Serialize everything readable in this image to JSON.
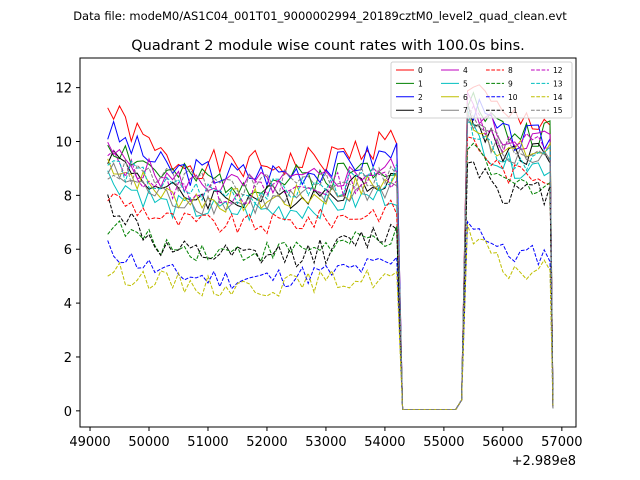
{
  "chart_data": {
    "type": "line",
    "suptitle": "Data file: modeM0/AS1C04_001T01_9000002994_20189cztM0_level2_quad_clean.evt",
    "title": "Quadrant 2 module wise count rates with 100.0s bins.",
    "xlabel": "",
    "ylabel": "",
    "x_offset_label": "+2.989e8",
    "xlim": [
      48830,
      57240
    ],
    "ylim": [
      -0.6,
      13.1
    ],
    "x_ticks": [
      49000,
      50000,
      51000,
      52000,
      53000,
      54000,
      55000,
      56000,
      57000
    ],
    "x_tick_labels": [
      "49000",
      "50000",
      "51000",
      "52000",
      "53000",
      "54000",
      "55000",
      "56000",
      "57000"
    ],
    "y_ticks": [
      0,
      2,
      4,
      6,
      8,
      10,
      12
    ],
    "y_tick_labels": [
      "0",
      "2",
      "4",
      "6",
      "8",
      "10",
      "12"
    ],
    "legend_location": "upper-right",
    "legend_columns": 4,
    "segments": {
      "seg1": [
        49300,
        54200
      ],
      "gap_low": 54300,
      "gap_high": 55200,
      "seg2": [
        55400,
        56800
      ],
      "end": 56850
    },
    "series": [
      {
        "name": "0",
        "color": "#ff0000",
        "dash": "solid",
        "level1": 9.3,
        "start": 11.2,
        "level2": 10.8,
        "amp": 0.35,
        "seed": 1
      },
      {
        "name": "1",
        "color": "#008000",
        "dash": "solid",
        "level1": 8.7,
        "start": 10.0,
        "level2": 10.3,
        "amp": 0.35,
        "seed": 2
      },
      {
        "name": "2",
        "color": "#0000ff",
        "dash": "solid",
        "level1": 9.0,
        "start": 10.4,
        "level2": 10.1,
        "amp": 0.35,
        "seed": 3
      },
      {
        "name": "3",
        "color": "#000000",
        "dash": "solid",
        "level1": 8.1,
        "start": 9.6,
        "level2": 9.6,
        "amp": 0.3,
        "seed": 4
      },
      {
        "name": "4",
        "color": "#bf00bf",
        "dash": "solid",
        "level1": 8.6,
        "start": 9.6,
        "level2": 10.1,
        "amp": 0.3,
        "seed": 5
      },
      {
        "name": "5",
        "color": "#00bfbf",
        "dash": "solid",
        "level1": 7.6,
        "start": 8.7,
        "level2": 9.1,
        "amp": 0.3,
        "seed": 6
      },
      {
        "name": "6",
        "color": "#bfbf00",
        "dash": "solid",
        "level1": 8.0,
        "start": 9.3,
        "level2": 9.6,
        "amp": 0.3,
        "seed": 7
      },
      {
        "name": "7",
        "color": "#808080",
        "dash": "solid",
        "level1": 7.9,
        "start": 8.9,
        "level2": 9.4,
        "amp": 0.3,
        "seed": 8
      },
      {
        "name": "8",
        "color": "#ff0000",
        "dash": "dashed",
        "level1": 7.1,
        "start": 8.0,
        "level2": 8.8,
        "amp": 0.25,
        "seed": 9
      },
      {
        "name": "9",
        "color": "#008000",
        "dash": "dashed",
        "level1": 6.1,
        "start": 6.9,
        "level2": 8.4,
        "amp": 0.25,
        "seed": 10
      },
      {
        "name": "10",
        "color": "#0000ff",
        "dash": "dashed",
        "level1": 5.1,
        "start": 6.0,
        "level2": 5.8,
        "amp": 0.25,
        "seed": 11
      },
      {
        "name": "11",
        "color": "#000000",
        "dash": "dashed",
        "level1": 5.9,
        "start": 7.8,
        "level2": 8.1,
        "amp": 0.3,
        "seed": 12
      },
      {
        "name": "12",
        "color": "#bf00bf",
        "dash": "dashed",
        "level1": 8.3,
        "start": 9.4,
        "level2": 9.9,
        "amp": 0.3,
        "seed": 13
      },
      {
        "name": "13",
        "color": "#00bfbf",
        "dash": "dashed",
        "level1": 8.3,
        "start": 9.2,
        "level2": 9.4,
        "amp": 0.3,
        "seed": 14
      },
      {
        "name": "14",
        "color": "#bfbf00",
        "dash": "dashed",
        "level1": 4.8,
        "start": 5.2,
        "level2": 5.2,
        "amp": 0.25,
        "seed": 15
      },
      {
        "name": "15",
        "color": "#808080",
        "dash": "dashed",
        "level1": 8.6,
        "start": 9.0,
        "level2": 9.7,
        "amp": 0.3,
        "seed": 16
      }
    ]
  }
}
